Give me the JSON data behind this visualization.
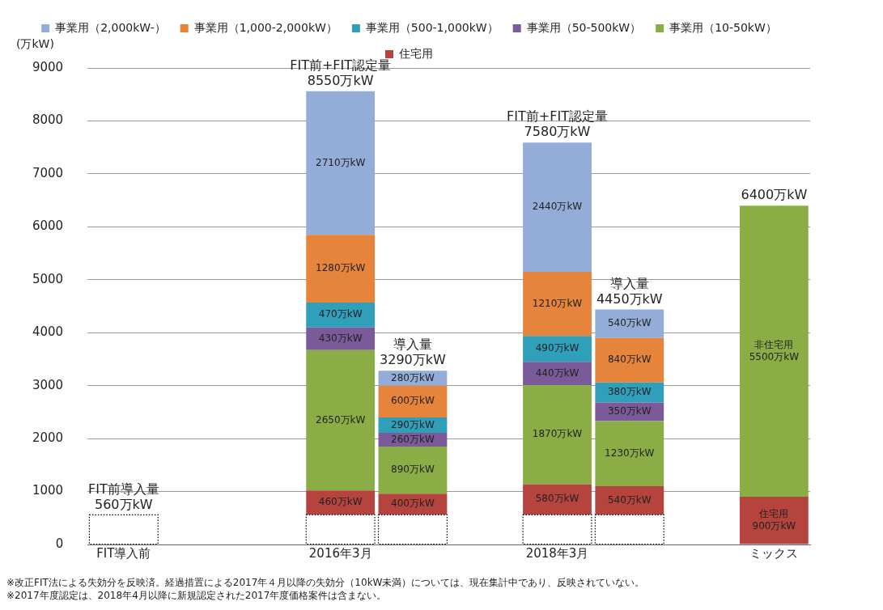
{
  "chart_data": {
    "type": "bar",
    "stacked": true,
    "ylabel": "(万kW)",
    "categories": [
      "FIT導入前",
      null,
      null,
      "2016年3月",
      null,
      null,
      "2018年3月",
      null,
      null,
      "ミックス"
    ],
    "ylim": [
      0,
      9000
    ],
    "yticks": [
      0,
      1000,
      2000,
      3000,
      4000,
      5000,
      6000,
      7000,
      8000,
      9000
    ],
    "grid": "y",
    "legend": "top",
    "series": [
      {
        "color": "#ffffff",
        "line_style": "dotted",
        "values": [
          560,
          null,
          null,
          560,
          560,
          null,
          560,
          560,
          null,
          null
        ]
      },
      {
        "name": "住宅用",
        "color": "#b5443f",
        "values": [
          null,
          null,
          null,
          460,
          400,
          null,
          580,
          540,
          null,
          900
        ],
        "value_labels": [
          null,
          null,
          null,
          "460万kW",
          "400万kW",
          null,
          "580万kW",
          "540万kW",
          null,
          "住宅用\n900万kW"
        ]
      },
      {
        "name": "事業用（10-50kW）",
        "color": "#8aae45",
        "values": [
          null,
          null,
          null,
          2650,
          890,
          null,
          1870,
          1230,
          null,
          5500
        ],
        "value_labels": [
          null,
          null,
          null,
          "2650万kW",
          "890万kW",
          null,
          "1870万kW",
          "1230万kW",
          null,
          "非住宅用\n5500万kW"
        ]
      },
      {
        "name": "事業用（50-500kW）",
        "color": "#7b5a99",
        "values": [
          null,
          null,
          null,
          430,
          260,
          null,
          440,
          350,
          null,
          null
        ],
        "value_labels": [
          null,
          null,
          null,
          "430万kW",
          "260万kW",
          null,
          "440万kW",
          "350万kW",
          null,
          null
        ]
      },
      {
        "name": "事業用（500-1,000kW）",
        "color": "#2f9fba",
        "values": [
          null,
          null,
          null,
          470,
          290,
          null,
          490,
          380,
          null,
          null
        ],
        "value_labels": [
          null,
          null,
          null,
          "470万kW",
          "290万kW",
          null,
          "490万kW",
          "380万kW",
          null,
          null
        ]
      },
      {
        "name": "事業用（1,000-2,000kW）",
        "color": "#e5843a",
        "values": [
          null,
          null,
          null,
          1280,
          600,
          null,
          1210,
          840,
          null,
          null
        ],
        "value_labels": [
          null,
          null,
          null,
          "1280万kW",
          "600万kW",
          null,
          "1210万kW",
          "840万kW",
          null,
          null
        ]
      },
      {
        "name": "事業用（2,000kW-）",
        "color": "#94acd8",
        "values": [
          null,
          null,
          null,
          2710,
          280,
          null,
          2440,
          540,
          null,
          null
        ],
        "value_labels": [
          null,
          null,
          null,
          "2710万kW",
          "280万kW",
          null,
          "2440万kW",
          "540万kW",
          null,
          null
        ]
      }
    ],
    "totals": [
      "FIT前導入量\n560万kW",
      null,
      null,
      "FIT前+FIT認定量\n8550万kW",
      "導入量\n3290万kW",
      null,
      "FIT前+FIT認定量\n7580万kW",
      "導入量\n4450万kW",
      null,
      "6400万kW"
    ],
    "annotations": [
      "※改正FIT法による失効分を反映済。経過措置による2017年４月以降の失効分（10kW未満）については、現在集計中であり、反映されていない。",
      "※2017年度認定は、2018年4月以降に新規認定された2017年度価格案件は含まない。"
    ]
  }
}
